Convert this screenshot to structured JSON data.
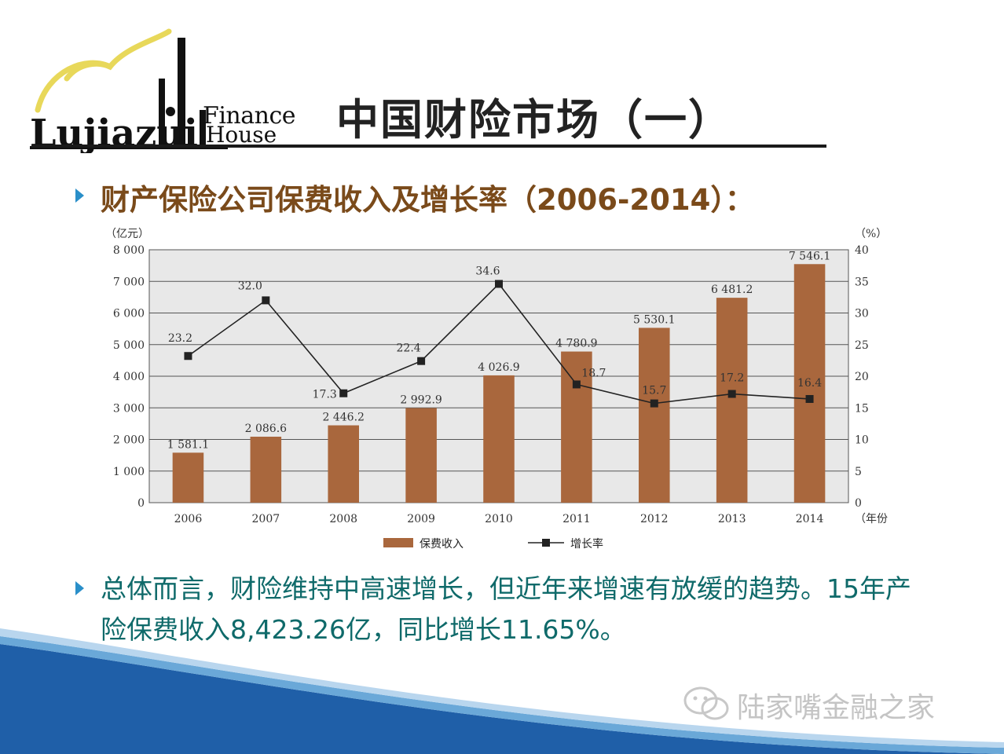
{
  "logo": {
    "brand_word": "Finance",
    "brand_word2": "House",
    "mark_text": "Lujiazui"
  },
  "slide": {
    "title": "中国财险市场（一）",
    "heading": "财产保险公司保费收入及增长率（2006-2014）：",
    "summary": "总体而言，财险维持中高速增长，但近年来增速有放缓的趋势。15年产险保费收入8,423.26亿，同比增长11.65%。"
  },
  "watermark": {
    "text": "陆家嘴金融之家"
  },
  "colors": {
    "bar": "#a9673d",
    "line": "#222222",
    "plot_bg": "#e8e8e8",
    "heading": "#7a4a1a",
    "summary": "#0f6a6a",
    "bullet": "#2a8fc9"
  },
  "chart_data": {
    "type": "bar",
    "categories": [
      "2006",
      "2007",
      "2008",
      "2009",
      "2010",
      "2011",
      "2012",
      "2013",
      "2014"
    ],
    "series": [
      {
        "name": "保费收入",
        "type": "bar",
        "axis": "left",
        "values": [
          1581.1,
          2086.6,
          2446.2,
          2992.9,
          4026.9,
          4780.9,
          5530.1,
          6481.2,
          7546.1
        ],
        "labels": [
          "1 581.1",
          "2 086.6",
          "2 446.2",
          "2 992.9",
          "4 026.9",
          "4 780.9",
          "5 530.1",
          "6 481.2",
          "7 546.1"
        ]
      },
      {
        "name": "增长率",
        "type": "line",
        "axis": "right",
        "values": [
          23.2,
          32.0,
          17.3,
          22.4,
          34.6,
          18.7,
          15.7,
          17.2,
          16.4
        ],
        "labels": [
          "23.2",
          "32.0",
          "17.3",
          "22.4",
          "34.6",
          "18.7",
          "15.7",
          "17.2",
          "16.4"
        ]
      }
    ],
    "ylabel_left": "（亿元）",
    "ylabel_right": "（%）",
    "xlabel": "（年份）",
    "ylim_left": [
      0,
      8000
    ],
    "ylim_right": [
      0,
      40
    ],
    "yticks_left": [
      "0",
      "1 000",
      "2 000",
      "3 000",
      "4 000",
      "5 000",
      "6 000",
      "7 000",
      "8 000"
    ],
    "yticks_right": [
      "0",
      "5",
      "10",
      "15",
      "20",
      "25",
      "30",
      "35",
      "40"
    ],
    "grid": true,
    "legend": "bottom-center"
  }
}
